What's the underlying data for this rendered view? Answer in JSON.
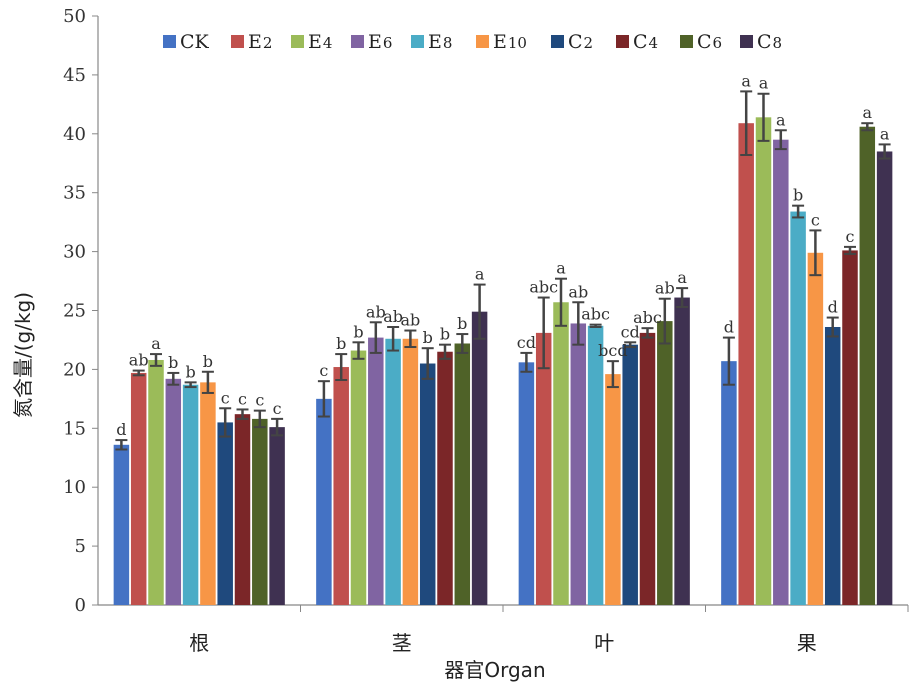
{
  "chart_data": {
    "type": "bar",
    "xlabel": "器官Organ",
    "ylabel": "氮含量/(g/kg)",
    "ylim": [
      0,
      50
    ],
    "yticks": [
      0,
      5,
      10,
      15,
      20,
      25,
      30,
      35,
      40,
      45,
      50
    ],
    "grid": false,
    "legend_position": "top",
    "error_bars": true,
    "categories": [
      "根",
      "茎",
      "叶",
      "果"
    ],
    "series": [
      {
        "name": "CK",
        "name_main": "CK",
        "name_sub": "",
        "color": "#4472C4",
        "values": [
          13.6,
          17.5,
          20.6,
          20.7
        ],
        "errors": [
          0.4,
          1.5,
          0.8,
          2.0
        ],
        "letters": [
          "d",
          "c",
          "cd",
          "d"
        ]
      },
      {
        "name": "E2",
        "name_main": "E",
        "name_sub": "2",
        "color": "#C0504D",
        "values": [
          19.7,
          20.2,
          23.1,
          40.9
        ],
        "errors": [
          0.2,
          1.1,
          3.0,
          2.7
        ],
        "letters": [
          "ab",
          "b",
          "abc",
          "a"
        ]
      },
      {
        "name": "E4",
        "name_main": "E",
        "name_sub": "4",
        "color": "#9BBB59",
        "values": [
          20.8,
          21.6,
          25.7,
          41.4
        ],
        "errors": [
          0.5,
          0.7,
          2.0,
          2.0
        ],
        "letters": [
          "a",
          "b",
          "a",
          "a"
        ]
      },
      {
        "name": "E6",
        "name_main": "E",
        "name_sub": "6",
        "color": "#8064A2",
        "values": [
          19.2,
          22.7,
          23.9,
          39.5
        ],
        "errors": [
          0.5,
          1.3,
          1.8,
          0.8
        ],
        "letters": [
          "b",
          "ab",
          "ab",
          "a"
        ]
      },
      {
        "name": "E8",
        "name_main": "E",
        "name_sub": "8",
        "color": "#4BACC6",
        "values": [
          18.7,
          22.6,
          23.7,
          33.4
        ],
        "errors": [
          0.2,
          1.0,
          0.1,
          0.5
        ],
        "letters": [
          "b",
          "ab",
          "abc",
          "b"
        ]
      },
      {
        "name": "E10",
        "name_main": "E",
        "name_sub": "10",
        "color": "#F79646",
        "values": [
          18.9,
          22.6,
          19.6,
          29.9
        ],
        "errors": [
          0.9,
          0.7,
          1.1,
          1.9
        ],
        "letters": [
          "b",
          "ab",
          "bcd",
          "c"
        ]
      },
      {
        "name": "C2",
        "name_main": "C",
        "name_sub": "2",
        "color": "#1F497D",
        "values": [
          15.5,
          20.5,
          22.1,
          23.6
        ],
        "errors": [
          1.2,
          1.3,
          0.2,
          0.8
        ],
        "letters": [
          "c",
          "b",
          "cd",
          "d"
        ]
      },
      {
        "name": "C4",
        "name_main": "C",
        "name_sub": "4",
        "color": "#7B2628",
        "values": [
          16.2,
          21.5,
          23.1,
          30.1
        ],
        "errors": [
          0.4,
          0.6,
          0.4,
          0.3
        ],
        "letters": [
          "c",
          "b",
          "abc",
          "c"
        ]
      },
      {
        "name": "C6",
        "name_main": "C",
        "name_sub": "6",
        "color": "#4F6228",
        "values": [
          15.8,
          22.2,
          24.1,
          40.6
        ],
        "errors": [
          0.7,
          0.8,
          1.9,
          0.3
        ],
        "letters": [
          "c",
          "b",
          "ab",
          "a"
        ]
      },
      {
        "name": "C8",
        "name_main": "C",
        "name_sub": "8",
        "color": "#3F3151",
        "values": [
          15.1,
          24.9,
          26.1,
          38.5
        ],
        "errors": [
          0.7,
          2.3,
          0.8,
          0.6
        ],
        "letters": [
          "c",
          "a",
          "a",
          "a"
        ]
      }
    ]
  }
}
